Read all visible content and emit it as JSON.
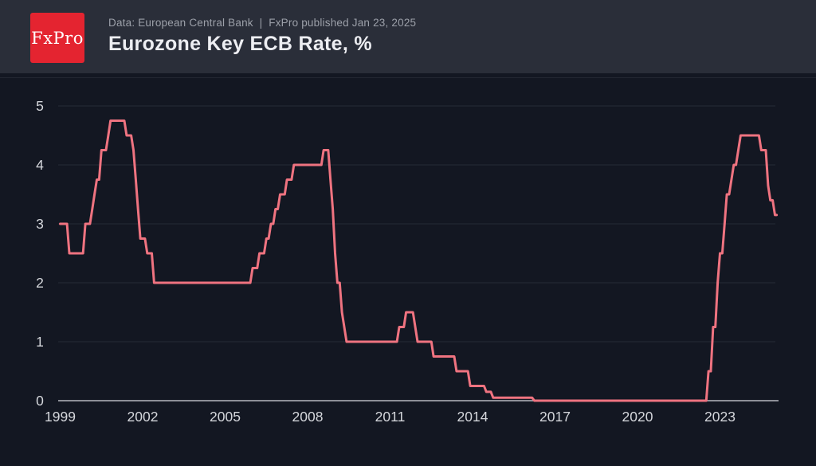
{
  "header": {
    "logo_text": "FxPro",
    "source_line": "Data: European Central Bank  |  FxPro published Jan 23, 2025",
    "title": "Eurozone Key ECB Rate, %"
  },
  "colors": {
    "page_background": "#131722",
    "header_background": "#2a2e39",
    "logo_red": "#e42430",
    "line_color": "#ef7380",
    "grid_color": "#262b36",
    "axis_color": "#b7b9bf",
    "tick_label_color": "#d5d7dc",
    "title_color": "#edeef2",
    "subtitle_color": "#9ca0a9"
  },
  "chart_data": {
    "type": "line",
    "title": "Eurozone Key ECB Rate, %",
    "series_name": "ECB key rate",
    "unit": "%",
    "interpolation": "monthly-step",
    "grid": "horizontal",
    "legend_position": "none",
    "xlabel": "",
    "ylabel": "",
    "x_range": [
      1999.0,
      2025.06
    ],
    "ylim": [
      0,
      5
    ],
    "yticks": [
      0,
      1,
      2,
      3,
      4,
      5
    ],
    "xticks": [
      1999,
      2002,
      2005,
      2008,
      2011,
      2014,
      2017,
      2020,
      2023
    ],
    "final_value": 3.15,
    "steps_note": "each entry = [decimal year, rate in % effective from that time]",
    "steps": [
      [
        1999.0,
        3.0
      ],
      [
        1999.27,
        2.5
      ],
      [
        1999.84,
        3.0
      ],
      [
        2000.09,
        3.25
      ],
      [
        2000.21,
        3.5
      ],
      [
        2000.32,
        3.75
      ],
      [
        2000.44,
        4.25
      ],
      [
        2000.67,
        4.5
      ],
      [
        2000.77,
        4.75
      ],
      [
        2001.36,
        4.5
      ],
      [
        2001.6,
        4.25
      ],
      [
        2001.7,
        3.75
      ],
      [
        2001.83,
        3.25
      ],
      [
        2001.9,
        2.75
      ],
      [
        2002.12,
        2.5
      ],
      [
        2002.4,
        2.0
      ],
      [
        2005.93,
        2.25
      ],
      [
        2006.19,
        2.5
      ],
      [
        2006.46,
        2.75
      ],
      [
        2006.61,
        3.0
      ],
      [
        2006.78,
        3.25
      ],
      [
        2006.95,
        3.5
      ],
      [
        2007.2,
        3.75
      ],
      [
        2007.45,
        4.0
      ],
      [
        2008.52,
        4.25
      ],
      [
        2008.79,
        3.75
      ],
      [
        2008.87,
        3.25
      ],
      [
        2008.94,
        2.5
      ],
      [
        2009.06,
        2.0
      ],
      [
        2009.19,
        1.5
      ],
      [
        2009.27,
        1.25
      ],
      [
        2009.37,
        1.0
      ],
      [
        2011.28,
        1.25
      ],
      [
        2011.53,
        1.5
      ],
      [
        2011.86,
        1.25
      ],
      [
        2011.95,
        1.0
      ],
      [
        2012.53,
        0.75
      ],
      [
        2013.35,
        0.5
      ],
      [
        2013.87,
        0.25
      ],
      [
        2014.44,
        0.15
      ],
      [
        2014.69,
        0.05
      ],
      [
        2016.21,
        0.0
      ],
      [
        2022.57,
        0.5
      ],
      [
        2022.7,
        1.25
      ],
      [
        2022.84,
        2.0
      ],
      [
        2022.97,
        2.5
      ],
      [
        2023.11,
        3.0
      ],
      [
        2023.22,
        3.5
      ],
      [
        2023.36,
        3.75
      ],
      [
        2023.47,
        4.0
      ],
      [
        2023.59,
        4.25
      ],
      [
        2023.72,
        4.5
      ],
      [
        2024.45,
        4.25
      ],
      [
        2024.72,
        3.65
      ],
      [
        2024.81,
        3.4
      ],
      [
        2024.97,
        3.15
      ]
    ]
  }
}
